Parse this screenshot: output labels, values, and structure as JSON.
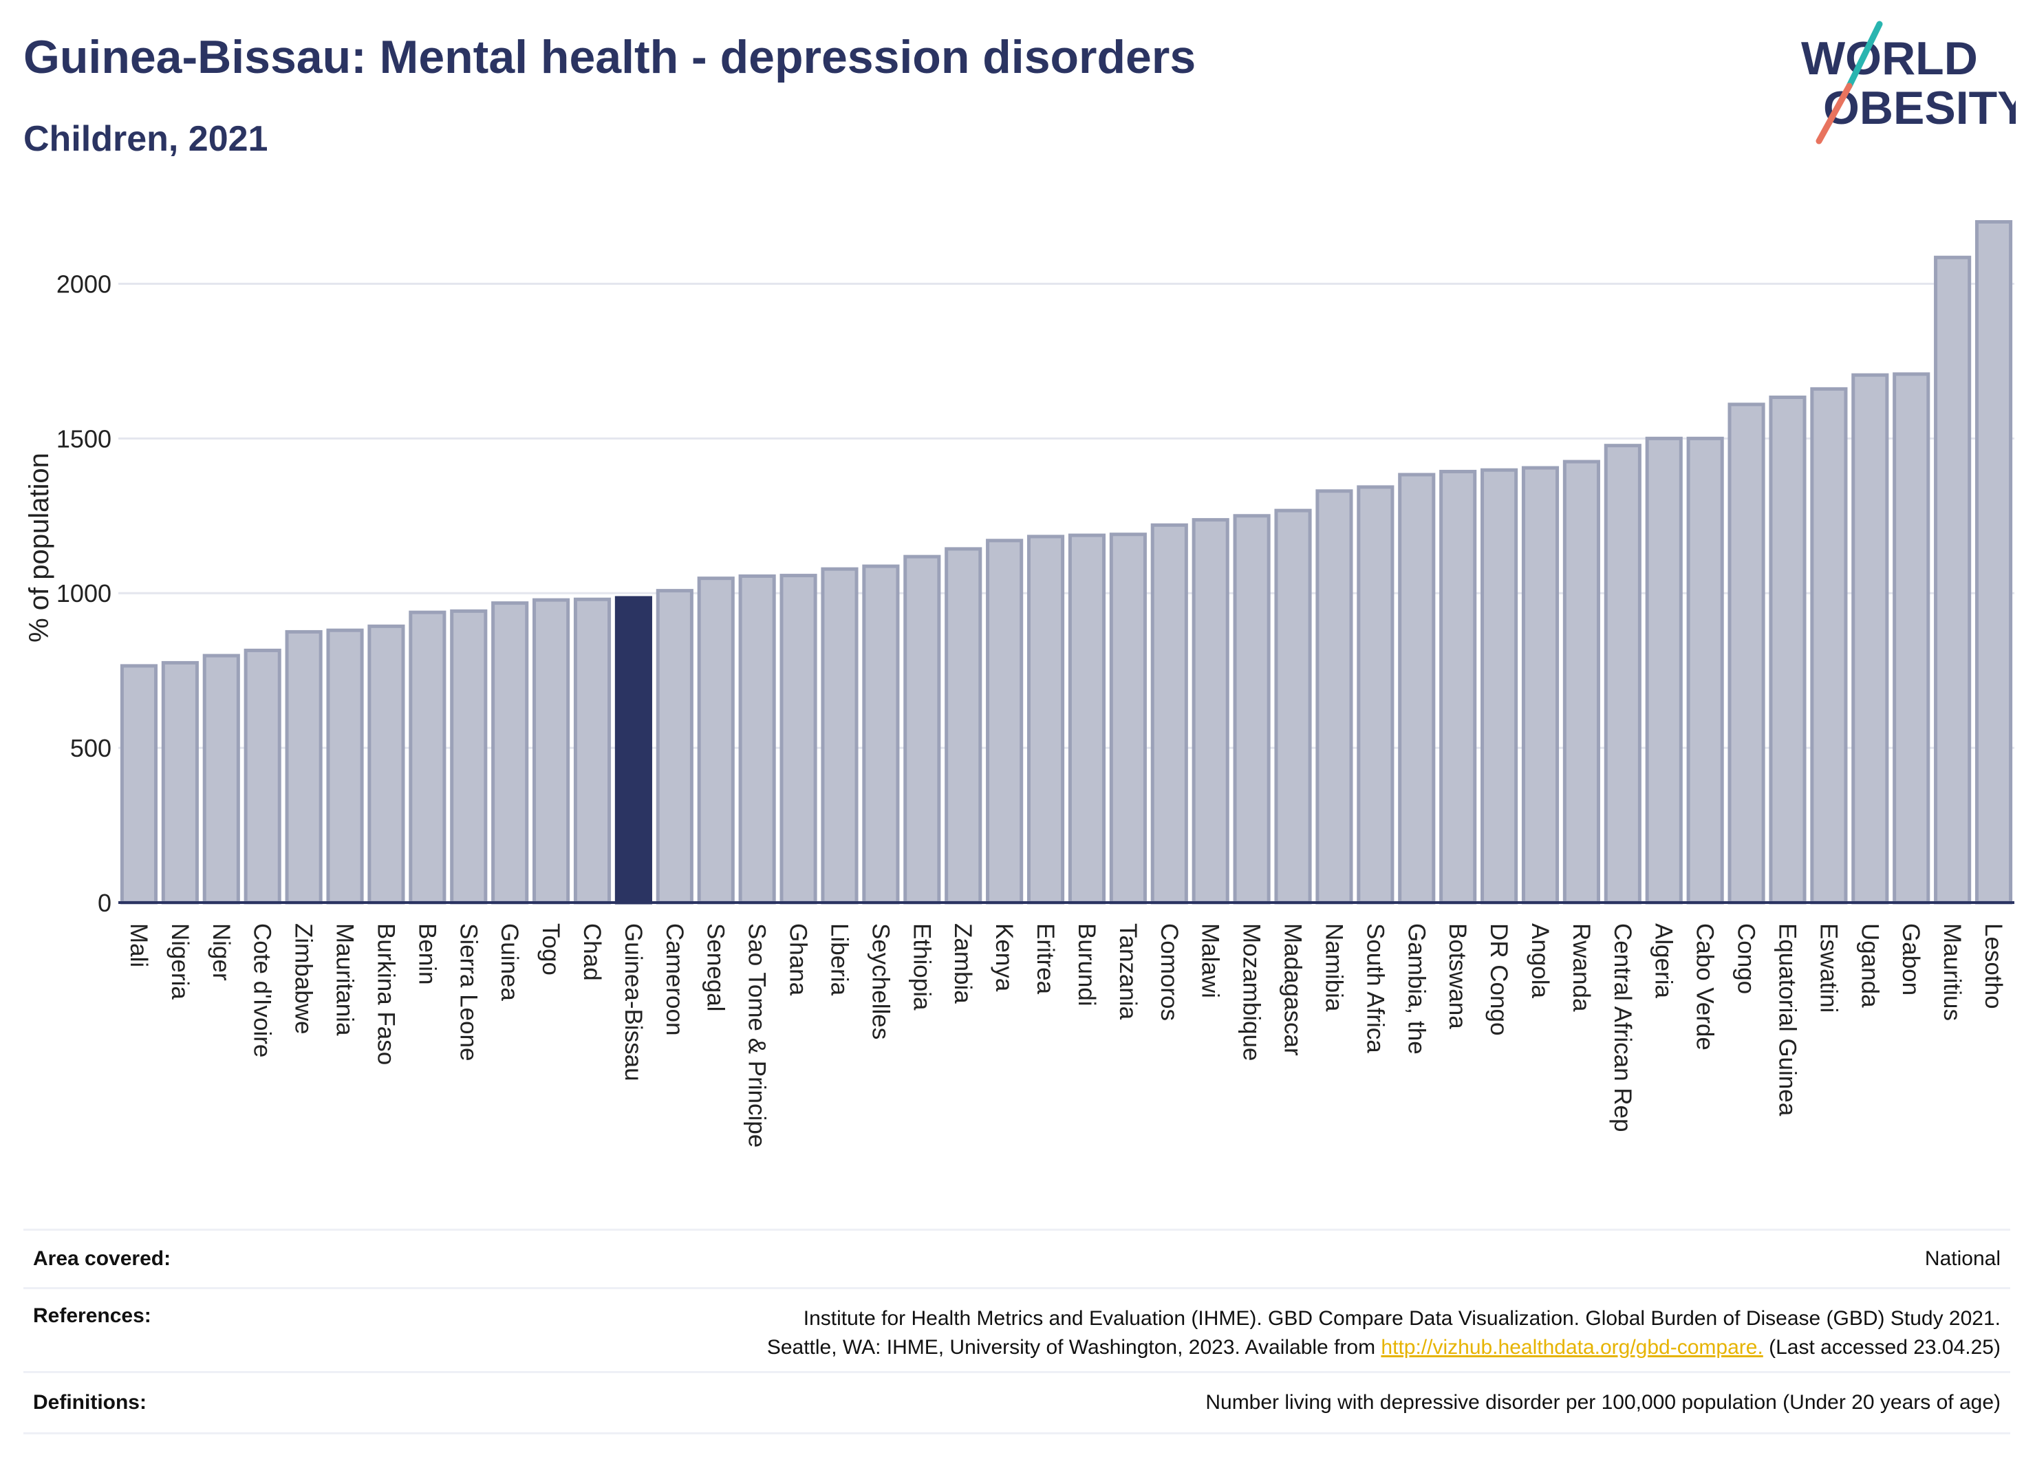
{
  "header": {
    "title": "Guinea-Bissau: Mental health - depression disorders",
    "subtitle": "Children, 2021"
  },
  "logo": {
    "line1": "WORLD",
    "line2": "OBESITY",
    "slash_colors": [
      "#29b5b0",
      "#e8735e"
    ]
  },
  "colors": {
    "bar": "#bcc0cf",
    "bar_border": "#9ba1b8",
    "highlight": "#2b3462",
    "grid": "#e4e6ee",
    "axis": "#2b3462",
    "text": "#2b3462"
  },
  "chart_data": {
    "type": "bar",
    "title": "Guinea-Bissau: Mental health - depression disorders",
    "subtitle": "Children, 2021",
    "xlabel": "",
    "ylabel": "% of population",
    "ylim": [
      0,
      2250
    ],
    "yticks": [
      0,
      500,
      1000,
      1500,
      2000
    ],
    "grid": true,
    "highlight": "Guinea-Bissau",
    "categories": [
      "Mali",
      "Nigeria",
      "Niger",
      "Cote d'Ivoire",
      "Zimbabwe",
      "Mauritania",
      "Burkina Faso",
      "Benin",
      "Sierra Leone",
      "Guinea",
      "Togo",
      "Chad",
      "Guinea-Bissau",
      "Cameroon",
      "Senegal",
      "Sao Tome & Principe",
      "Ghana",
      "Liberia",
      "Seychelles",
      "Ethiopia",
      "Zambia",
      "Kenya",
      "Eritrea",
      "Burundi",
      "Tanzania",
      "Comoros",
      "Malawi",
      "Mozambique",
      "Madagascar",
      "Namibia",
      "South Africa",
      "Gambia, the",
      "Botswana",
      "DR Congo",
      "Angola",
      "Rwanda",
      "Central African Rep",
      "Algeria",
      "Cabo Verde",
      "Congo",
      "Equatorial Guinea",
      "Eswatini",
      "Uganda",
      "Gabon",
      "Mauritius",
      "Lesotho"
    ],
    "values": [
      765,
      775,
      798,
      815,
      875,
      880,
      893,
      938,
      942,
      968,
      978,
      980,
      985,
      1008,
      1048,
      1055,
      1057,
      1078,
      1087,
      1118,
      1143,
      1170,
      1183,
      1187,
      1190,
      1220,
      1237,
      1250,
      1267,
      1330,
      1343,
      1383,
      1393,
      1398,
      1405,
      1425,
      1477,
      1500,
      1500,
      1610,
      1633,
      1660,
      1705,
      1708,
      2085,
      2200
    ]
  },
  "footer": {
    "rows": [
      {
        "label": "Area covered:",
        "lines": [
          "National"
        ]
      },
      {
        "label": "References:",
        "lines": [
          "Institute for Health Metrics and Evaluation (IHME). GBD Compare Data Visualization. Global Burden of Disease (GBD) Study 2021.",
          "Seattle, WA: IHME, University of Washington, 2023. Available from "
        ],
        "link": "http://vizhub.healthdata.org/gbd-compare.",
        "after_link": " (Last accessed 23.04.25)"
      },
      {
        "label": "Definitions:",
        "lines": [
          "Number living with depressive disorder per 100,000 population (Under 20 years of age)"
        ]
      }
    ]
  }
}
